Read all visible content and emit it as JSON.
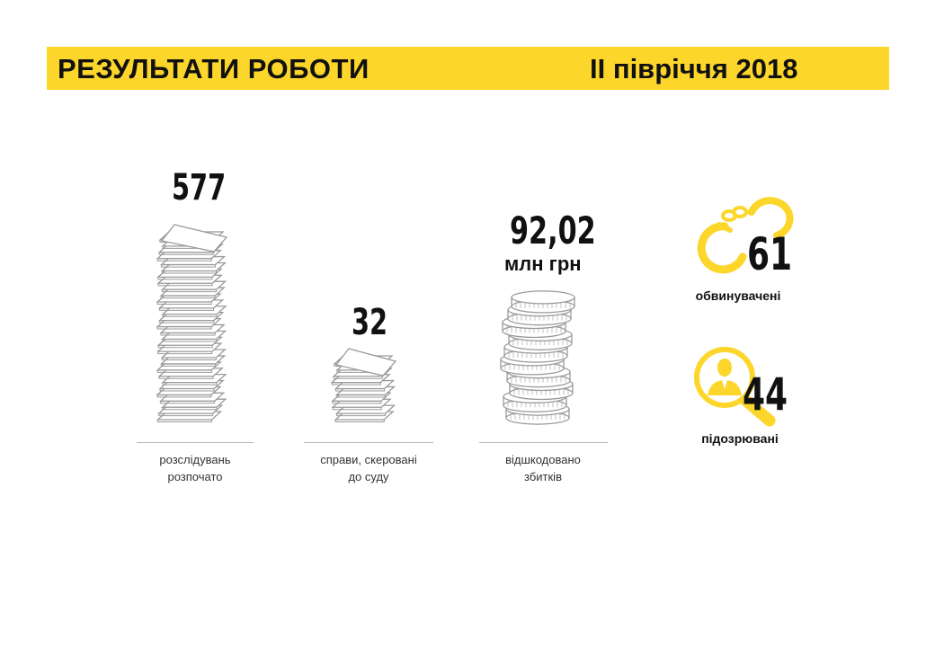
{
  "header": {
    "title": "РЕЗУЛЬТАТИ РОБОТИ",
    "period": "ІІ півріччя 2018",
    "accent_color": "#fcd62b"
  },
  "stats": {
    "investigations": {
      "value": "577",
      "label_line1": "розслідувань",
      "label_line2": "розпочато",
      "icon": "paper-stack-icon"
    },
    "cases_to_court": {
      "value": "32",
      "label_line1": "справи, скеровані",
      "label_line2": "до суду",
      "icon": "paper-stack-icon"
    },
    "damages": {
      "value": "92,02",
      "unit": "млн грн",
      "label_line1": "відшкодовано",
      "label_line2": "збитків",
      "icon": "coin-stack-icon"
    },
    "accused": {
      "value": "61",
      "label": "обвинувачені",
      "icon": "handcuffs-icon"
    },
    "suspects": {
      "value": "44",
      "label": "підозрювані",
      "icon": "magnifier-person-icon"
    }
  }
}
